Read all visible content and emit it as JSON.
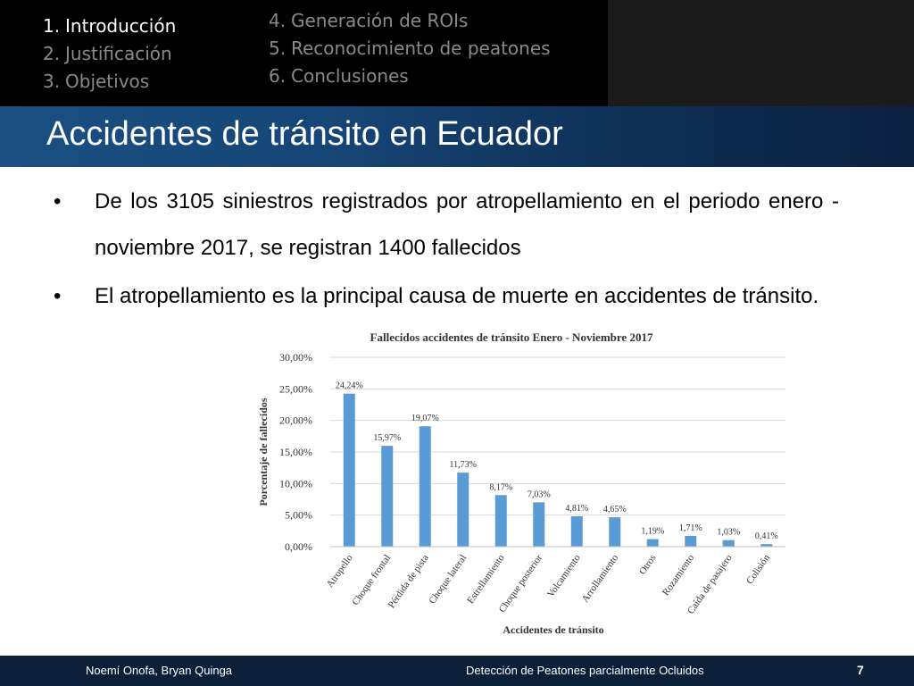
{
  "nav": {
    "left": [
      {
        "num": "1.",
        "label": "Introducción",
        "active": true
      },
      {
        "num": "2.",
        "label": "Justificación",
        "active": false
      },
      {
        "num": "3.",
        "label": "Objetivos",
        "active": false
      }
    ],
    "right": [
      {
        "num": "4.",
        "label": "Generación de ROIs",
        "active": false
      },
      {
        "num": "5.",
        "label": "Reconocimiento de peatones",
        "active": false
      },
      {
        "num": "6.",
        "label": "Conclusiones",
        "active": false
      }
    ]
  },
  "slide": {
    "title": "Accidentes de tránsito en Ecuador",
    "bullet_symbol": "•",
    "bullets": [
      "De los 3105 siniestros registrados por atropellamiento en el periodo enero - noviembre 2017, se registran 1400 fallecidos",
      "El atropellamiento es la principal causa de muerte en accidentes de tránsito."
    ]
  },
  "chart_data": {
    "type": "bar",
    "title": "Fallecidos accidentes de tránsito Enero - Noviembre 2017",
    "xlabel": "Accidentes de tránsito",
    "ylabel": "Porcentaje de fallecidos",
    "categories": [
      "Atropello",
      "Choque frontal",
      "Pérdida de pista",
      "Choque lateral",
      "Estrellamiento",
      "Choque posterior",
      "Volcamiento",
      "Arrollamiento",
      "Otros",
      "Rozamiento",
      "Caída de pasajero",
      "Colisión"
    ],
    "values": [
      24.24,
      15.97,
      19.07,
      11.73,
      8.17,
      7.03,
      4.81,
      4.65,
      1.19,
      1.71,
      1.03,
      0.41
    ],
    "value_labels": [
      "24,24%",
      "15,97%",
      "19,07%",
      "11,73%",
      "8,17%",
      "7,03%",
      "4,81%",
      "4,65%",
      "1,19%",
      "1,71%",
      "1,03%",
      "0,41%"
    ],
    "yticks": [
      0,
      5,
      10,
      15,
      20,
      25,
      30
    ],
    "ytick_labels": [
      "0,00%",
      "5,00%",
      "10,00%",
      "15,00%",
      "20,00%",
      "25,00%",
      "30,00%"
    ],
    "ylim": [
      0,
      30
    ],
    "grid": true,
    "bar_color": "#5b9bd5"
  },
  "footer": {
    "authors": "Noemí Onofa, Bryan Quinga",
    "topic": "Detección de Peatones parcialmente Ocluidos",
    "page": "7"
  }
}
